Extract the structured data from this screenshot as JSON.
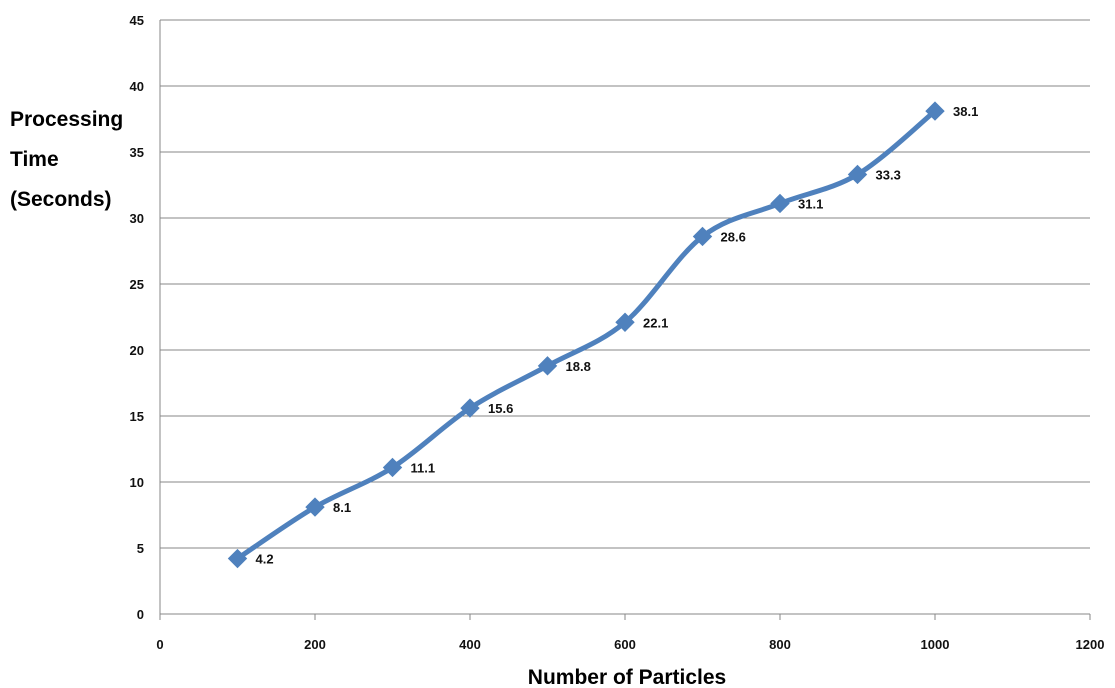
{
  "chart_data": {
    "type": "line",
    "title": "",
    "xlabel": "Number of Particles",
    "ylabel_lines": [
      "Processing",
      "Time",
      "(Seconds)"
    ],
    "xlim": [
      0,
      1200
    ],
    "ylim": [
      0,
      45
    ],
    "xticks": [
      0,
      200,
      400,
      600,
      800,
      1000,
      1200
    ],
    "yticks": [
      0,
      5,
      10,
      15,
      20,
      25,
      30,
      35,
      40,
      45
    ],
    "grid": "horizontal",
    "legend": "none",
    "series": [
      {
        "color": "#4f81bd",
        "marker": "diamond",
        "smooth": true,
        "x": [
          100,
          200,
          300,
          400,
          500,
          600,
          700,
          800,
          900,
          1000
        ],
        "y": [
          4.2,
          8.1,
          11.1,
          15.6,
          18.8,
          22.1,
          28.6,
          31.1,
          33.3,
          38.1
        ],
        "labels": [
          "4.2",
          "8.1",
          "11.1",
          "15.6",
          "18.8",
          "22.1",
          "28.6",
          "31.1",
          "33.3",
          "38.1"
        ]
      }
    ]
  }
}
